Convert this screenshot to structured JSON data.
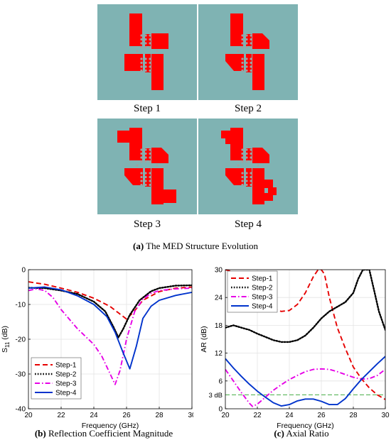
{
  "structure": {
    "steps": [
      "Step 1",
      "Step 2",
      "Step 3",
      "Step 4"
    ],
    "colors": {
      "background": "#7fb3b3",
      "metal": "#ff0000",
      "vias": "#a0a0a0"
    },
    "caption_letter": "(a)",
    "caption_text": "The MED Structure Evolution"
  },
  "captions": {
    "b_letter": "(b)",
    "b_text": "Reflection Coefficient Magnitude",
    "c_letter": "(c)",
    "c_text": "Axial Ratio"
  },
  "chart_data": [
    {
      "type": "line",
      "xlabel": "Frequency (GHz)",
      "ylabel": "S11 (dB)",
      "ylabel_main": "S",
      "ylabel_sub": "11",
      "ylabel_unit": " (dB)",
      "xlim": [
        20,
        30
      ],
      "ylim": [
        -40,
        0
      ],
      "xticks": [
        20,
        22,
        24,
        26,
        28,
        30
      ],
      "yticks": [
        -40,
        -30,
        -20,
        -10,
        0
      ],
      "grid": true,
      "legend": "bottom-left",
      "series": [
        {
          "name": "Step-1",
          "color": "#e60000",
          "dash": "dashed",
          "x": [
            20,
            21,
            22,
            23,
            24,
            25,
            25.5,
            26,
            26.5,
            27,
            28,
            29,
            30
          ],
          "y": [
            -3.5,
            -4.2,
            -5.3,
            -6.5,
            -8.2,
            -10.6,
            -12.4,
            -14.2,
            -11.8,
            -8.8,
            -6.3,
            -5.3,
            -5.0
          ]
        },
        {
          "name": "Step-2",
          "color": "#000000",
          "dash": "dotted",
          "x": [
            20,
            21,
            22,
            23,
            24,
            24.7,
            25.2,
            25.5,
            25.8,
            26.2,
            26.8,
            27.5,
            28,
            29,
            30
          ],
          "y": [
            -5.2,
            -5.3,
            -6.0,
            -7.0,
            -9.2,
            -12.0,
            -16.5,
            -19.5,
            -17.0,
            -13.0,
            -8.8,
            -6.2,
            -5.3,
            -4.6,
            -4.5
          ]
        },
        {
          "name": "Step-3",
          "color": "#e600e6",
          "dash": "dashdot",
          "x": [
            20,
            20.5,
            21,
            21.5,
            22,
            23,
            24,
            24.5,
            25,
            25.3,
            25.6,
            26,
            26.5,
            27,
            27.5,
            28,
            29,
            30
          ],
          "y": [
            -6.0,
            -5.5,
            -6.0,
            -8.0,
            -11.5,
            -17.0,
            -21.5,
            -25.0,
            -30.0,
            -33.0,
            -29.0,
            -20.0,
            -12.0,
            -8.5,
            -6.8,
            -6.0,
            -5.5,
            -5.3
          ]
        },
        {
          "name": "Step-4",
          "color": "#0033cc",
          "dash": "solid",
          "x": [
            20,
            21,
            22,
            23,
            24,
            24.8,
            25.3,
            25.8,
            26.2,
            26.6,
            27,
            27.5,
            28,
            29,
            30
          ],
          "y": [
            -5.3,
            -5.0,
            -5.8,
            -7.5,
            -10.0,
            -13.5,
            -18.0,
            -24.0,
            -28.5,
            -22.0,
            -14.0,
            -10.5,
            -8.8,
            -7.4,
            -6.5
          ]
        }
      ]
    },
    {
      "type": "line",
      "xlabel": "Frequency (GHz)",
      "ylabel": "AR (dB)",
      "xlim": [
        20,
        30
      ],
      "ylim": [
        0,
        30
      ],
      "xticks": [
        20,
        22,
        24,
        26,
        28,
        30
      ],
      "yticks": [
        0,
        6,
        12,
        18,
        24,
        30
      ],
      "grid": true,
      "legend": "top-left",
      "annotation": "3 dB",
      "reference_line": {
        "y": 3,
        "color": "#66bb66"
      },
      "series": [
        {
          "name": "Step-1",
          "color": "#e60000",
          "dash": "dashed",
          "x": [
            20,
            20.5,
            21,
            22,
            23,
            23.5,
            24,
            24.5,
            25,
            25.5,
            25.8,
            26,
            26.2,
            26.5,
            27,
            27.5,
            28,
            28.5,
            29,
            29.5,
            30
          ],
          "y": [
            30,
            29.5,
            27,
            24,
            21.5,
            21.0,
            21.2,
            22.5,
            25.0,
            28.5,
            30,
            30,
            29,
            24,
            17.5,
            13.0,
            9.0,
            6.5,
            4.5,
            3.0,
            2.0
          ]
        },
        {
          "name": "Step-2",
          "color": "#000000",
          "dash": "dotted",
          "x": [
            20,
            20.5,
            21,
            21.5,
            22,
            22.5,
            23,
            23.5,
            24,
            24.5,
            25,
            25.5,
            26,
            26.5,
            27,
            27.5,
            28,
            28.3,
            28.6,
            28.8,
            29,
            29.3,
            29.6,
            30
          ],
          "y": [
            17.5,
            18.0,
            17.5,
            17.0,
            16.2,
            15.5,
            14.8,
            14.4,
            14.4,
            14.8,
            15.8,
            17.5,
            19.5,
            21.0,
            22.0,
            23.0,
            25.0,
            28.0,
            30,
            30,
            30,
            25.5,
            21.0,
            17.0
          ]
        },
        {
          "name": "Step-3",
          "color": "#e600e6",
          "dash": "dashdot",
          "x": [
            20,
            20.5,
            21,
            21.5,
            21.7,
            22,
            22.5,
            23,
            23.5,
            24,
            24.5,
            25,
            25.5,
            26,
            26.5,
            27,
            27.5,
            28,
            28.5,
            29,
            29.5,
            30
          ],
          "y": [
            8.5,
            6.0,
            3.5,
            1.2,
            0.5,
            1.0,
            2.5,
            4.0,
            5.2,
            6.3,
            7.2,
            8.0,
            8.5,
            8.6,
            8.5,
            8.0,
            7.4,
            6.8,
            6.4,
            6.5,
            7.2,
            8.5
          ]
        },
        {
          "name": "Step-4",
          "color": "#0033cc",
          "dash": "solid",
          "x": [
            20,
            20.5,
            21,
            21.5,
            22,
            22.5,
            23,
            23.5,
            24,
            24.5,
            25,
            25.5,
            26,
            26.5,
            27,
            27.5,
            28,
            28.5,
            29,
            29.5,
            30
          ],
          "y": [
            10.8,
            8.8,
            7.0,
            5.3,
            3.8,
            2.5,
            1.3,
            0.6,
            0.9,
            1.7,
            2.1,
            2.1,
            1.6,
            0.9,
            0.9,
            2.2,
            4.3,
            6.3,
            8.0,
            9.7,
            11.3
          ]
        }
      ]
    }
  ]
}
